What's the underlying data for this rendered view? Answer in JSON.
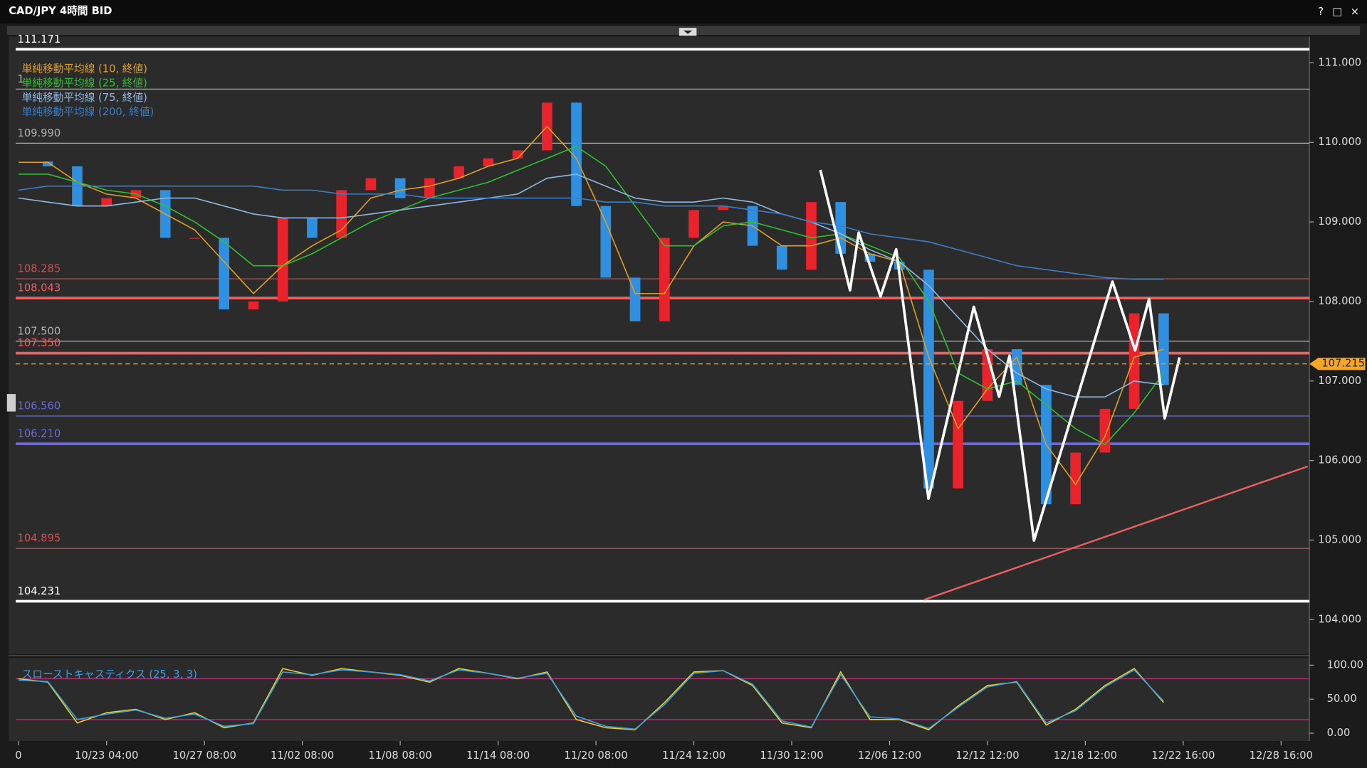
{
  "window_buttons": [
    "?",
    "□",
    "×"
  ],
  "chart_data": [
    {
      "type": "candlestick",
      "title": "CAD/JPY 4時間 BID",
      "x": [
        0.1,
        0.4,
        0.7,
        1.0,
        1.3,
        1.6,
        1.9,
        2.2,
        2.5,
        2.8,
        3.1,
        3.4,
        3.7,
        4.0,
        4.3,
        4.6,
        4.9,
        5.2,
        5.5,
        5.8,
        6.1,
        6.4,
        6.7,
        7.0,
        7.3,
        7.6,
        7.9,
        8.2,
        8.5,
        8.8,
        9.1,
        9.4,
        9.7,
        10.0,
        10.3,
        10.6,
        10.9,
        11.2,
        11.5,
        11.8
      ],
      "xlim": [
        0,
        13.29
      ],
      "xticks": [
        {
          "value": 0.1,
          "label": "0"
        },
        {
          "value": 1,
          "label": "10/23 04:00"
        },
        {
          "value": 2,
          "label": "10/27 08:00"
        },
        {
          "value": 3,
          "label": "11/02 08:00"
        },
        {
          "value": 4,
          "label": "11/08 08:00"
        },
        {
          "value": 5,
          "label": "11/14 08:00"
        },
        {
          "value": 6,
          "label": "11/20 08:00"
        },
        {
          "value": 7,
          "label": "11/24 12:00"
        },
        {
          "value": 8,
          "label": "11/30 12:00"
        },
        {
          "value": 9,
          "label": "12/06 12:00"
        },
        {
          "value": 10,
          "label": "12/12 12:00"
        },
        {
          "value": 11,
          "label": "12/18 12:00"
        },
        {
          "value": 12,
          "label": "12/22 16:00"
        },
        {
          "value": 13,
          "label": "12/28 16:00"
        }
      ],
      "ylim": [
        103.57,
        111.33
      ],
      "yticks": [
        {
          "value": 111,
          "label": "111.000"
        },
        {
          "value": 110,
          "label": "110.000"
        },
        {
          "value": 109,
          "label": "109.000"
        },
        {
          "value": 108,
          "label": "108.000"
        },
        {
          "value": 107,
          "label": "107.000"
        },
        {
          "value": 106,
          "label": "106.000"
        },
        {
          "value": 105,
          "label": "105.000"
        },
        {
          "value": 104,
          "label": "104.000"
        }
      ],
      "series": [
        {
          "up_color": "#e8232b",
          "down_color": "#2f8fe0",
          "values": [
            109.76,
            109.7,
            109.2,
            109.3,
            109.4,
            108.8,
            108.8,
            107.9,
            108.0,
            109.05,
            108.8,
            109.4,
            109.55,
            109.3,
            109.55,
            109.7,
            109.8,
            109.9,
            110.5,
            109.2,
            108.3,
            107.75,
            108.8,
            109.15,
            109.2,
            108.7,
            108.4,
            109.25,
            108.6,
            108.5,
            108.4,
            105.65,
            106.75,
            107.4,
            106.95,
            105.45,
            106.1,
            106.65,
            107.85,
            106.95
          ]
        },
        {
          "name": "単純移動平均線 (10, 終値)",
          "color": "#e0a020",
          "values": [
            109.75,
            109.75,
            109.5,
            109.35,
            109.3,
            109.1,
            108.9,
            108.5,
            108.1,
            108.45,
            108.7,
            108.9,
            109.3,
            109.4,
            109.45,
            109.55,
            109.7,
            109.8,
            110.2,
            109.8,
            109.0,
            108.1,
            108.1,
            108.7,
            109.0,
            108.95,
            108.7,
            108.7,
            108.8,
            108.6,
            108.5,
            107.3,
            106.4,
            106.9,
            107.3,
            106.2,
            105.7,
            106.3,
            107.3,
            107.4
          ]
        },
        {
          "name": "単純移動平均線 (25, 終値)",
          "color": "#2ec02e",
          "values": [
            109.6,
            109.6,
            109.5,
            109.4,
            109.35,
            109.2,
            109.0,
            108.75,
            108.45,
            108.45,
            108.6,
            108.8,
            109.0,
            109.15,
            109.3,
            109.4,
            109.5,
            109.65,
            109.8,
            109.95,
            109.7,
            109.2,
            108.7,
            108.7,
            108.95,
            109.0,
            108.9,
            108.8,
            108.85,
            108.7,
            108.55,
            108.0,
            107.1,
            106.9,
            107.0,
            106.7,
            106.4,
            106.2,
            106.6,
            107.1
          ]
        },
        {
          "name": "単純移動平均線 (75, 終値)",
          "color": "#8fb8e0",
          "values": [
            109.3,
            109.25,
            109.2,
            109.2,
            109.25,
            109.3,
            109.3,
            109.2,
            109.1,
            109.05,
            109.05,
            109.05,
            109.1,
            109.15,
            109.2,
            109.25,
            109.3,
            109.35,
            109.55,
            109.6,
            109.45,
            109.3,
            109.25,
            109.25,
            109.3,
            109.25,
            109.1,
            109.0,
            108.85,
            108.65,
            108.5,
            108.2,
            107.8,
            107.4,
            107.1,
            106.9,
            106.8,
            106.8,
            107.0,
            106.95
          ]
        },
        {
          "name": "単純移動平均線 (200, 終値)",
          "color": "#3d7ec4",
          "values": [
            109.4,
            109.45,
            109.45,
            109.45,
            109.45,
            109.45,
            109.45,
            109.45,
            109.45,
            109.4,
            109.4,
            109.35,
            109.35,
            109.35,
            109.3,
            109.3,
            109.3,
            109.3,
            109.3,
            109.3,
            109.25,
            109.25,
            109.2,
            109.2,
            109.2,
            109.15,
            109.1,
            109.0,
            108.95,
            108.85,
            108.8,
            108.75,
            108.65,
            108.55,
            108.45,
            108.4,
            108.35,
            108.3,
            108.28,
            108.28
          ]
        }
      ],
      "levels": [
        {
          "value": 111.171,
          "label": "111.171",
          "color": "#ffffff",
          "width": 3
        },
        {
          "value": 110.67,
          "label": "1",
          "color": "#b0b0b0",
          "width": 1
        },
        {
          "value": 109.99,
          "label": "109.990",
          "color": "#b0b0b0",
          "width": 1
        },
        {
          "value": 108.285,
          "label": "108.285",
          "color": "#d05050",
          "width": 1
        },
        {
          "value": 108.043,
          "label": "108.043",
          "color": "#f06060",
          "width": 3
        },
        {
          "value": 107.5,
          "label": "107.500",
          "color": "#b0b0b0",
          "width": 1
        },
        {
          "value": 107.35,
          "label": "107.350",
          "color": "#f06060",
          "width": 3
        },
        {
          "value": 106.56,
          "label": "106.560",
          "color": "#6a6ae0",
          "width": 1
        },
        {
          "value": 106.21,
          "label": "106.210",
          "color": "#6a6ae0",
          "width": 3
        },
        {
          "value": 104.895,
          "label": "104.895",
          "color": "#d05050",
          "width": 1
        },
        {
          "value": 104.231,
          "label": "104.231",
          "color": "#ffffff",
          "width": 3
        }
      ],
      "current": {
        "value": 107.215,
        "label": "107.215",
        "color": "#f5a623"
      }
    },
    {
      "type": "line",
      "title": "スローストキャスティクス (25, 3, 3)",
      "ylim": [
        -11.5,
        110.3
      ],
      "yticks": [
        {
          "value": 100,
          "label": "100.00"
        },
        {
          "value": 50,
          "label": "50.00"
        },
        {
          "value": 0,
          "label": "0.00"
        }
      ],
      "levels": [
        80,
        20
      ],
      "level_color": "#c0307a",
      "series": [
        {
          "color": "#f0d020",
          "values": [
            80,
            75,
            15,
            30,
            35,
            20,
            30,
            8,
            15,
            95,
            85,
            95,
            90,
            85,
            75,
            95,
            88,
            80,
            90,
            20,
            8,
            5,
            45,
            90,
            92,
            70,
            15,
            8,
            90,
            20,
            20,
            5,
            40,
            70,
            75,
            12,
            35,
            70,
            95,
            45
          ]
        },
        {
          "color": "#3aa0e8",
          "values": [
            78,
            76,
            20,
            28,
            34,
            22,
            28,
            10,
            14,
            90,
            86,
            93,
            90,
            86,
            77,
            93,
            88,
            81,
            88,
            25,
            10,
            6,
            42,
            88,
            92,
            72,
            18,
            9,
            86,
            24,
            21,
            7,
            38,
            68,
            76,
            15,
            33,
            68,
            93,
            47
          ]
        }
      ]
    }
  ]
}
